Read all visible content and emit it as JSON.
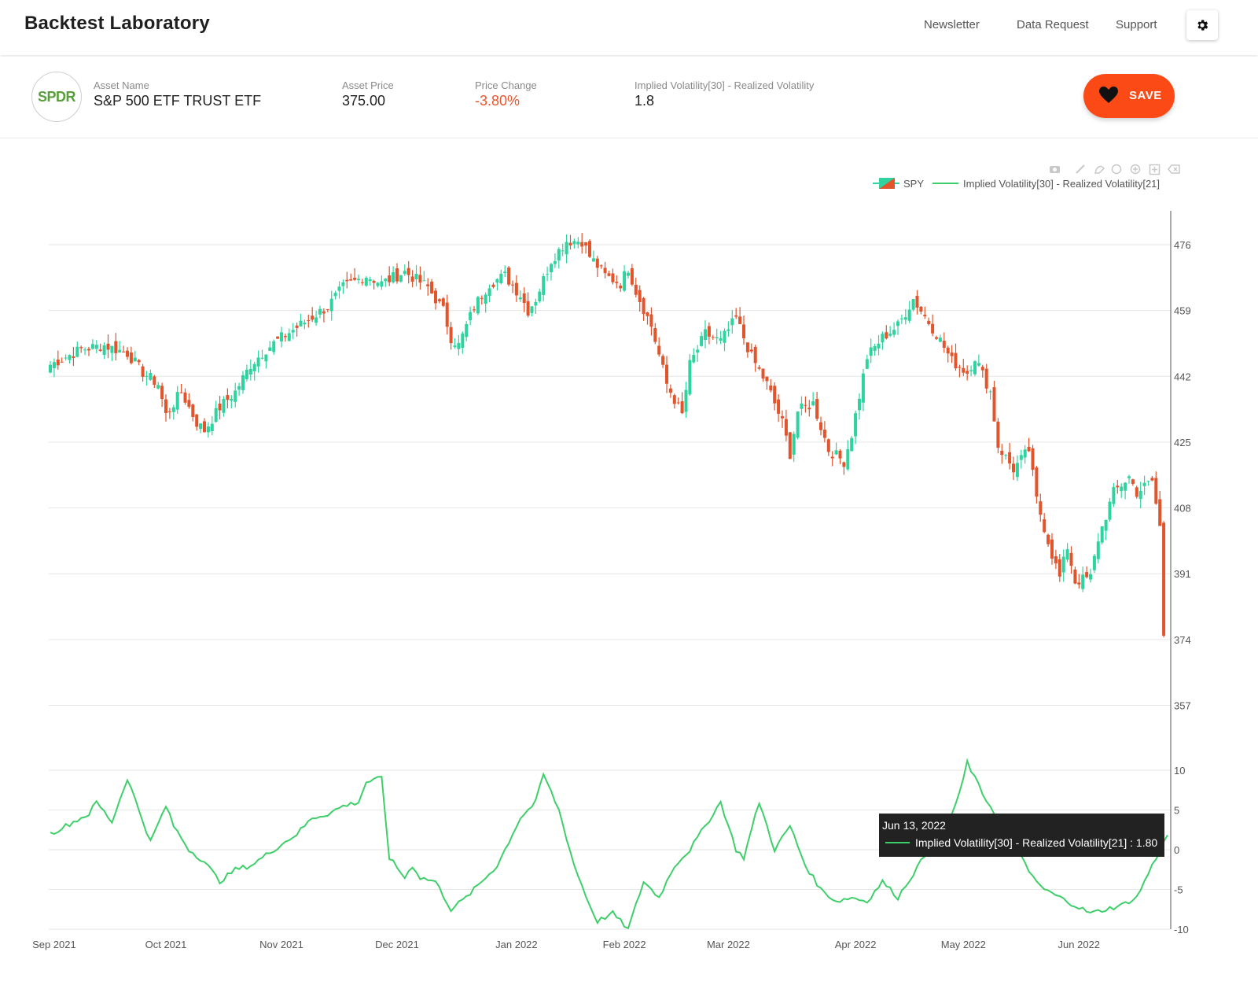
{
  "header": {
    "title": "Backtest Laboratory",
    "nav": [
      "Newsletter",
      "Data Request",
      "Support"
    ]
  },
  "asset": {
    "logo_text": "SPDR",
    "name_label": "Asset Name",
    "name": "S&P 500 ETF TRUST ETF",
    "price_label": "Asset Price",
    "price": "375.00",
    "change_label": "Price Change",
    "change": "-3.80%",
    "vol_label": "Implied Volatility[30] - Realized Volatility",
    "vol": "1.8",
    "save_label": "SAVE"
  },
  "colors": {
    "up": "#2fd39f",
    "down": "#e2542c",
    "line": "#3ecf6a",
    "save": "#fb4a16"
  },
  "chart_data": [
    {
      "type": "candlestick",
      "series_name": "SPY",
      "y_ticks": [
        476,
        459,
        442,
        425,
        408,
        391,
        374,
        357
      ],
      "x_ticks": [
        "Sep 2021",
        "Oct 2021",
        "Nov 2021",
        "Dec 2021",
        "Jan 2022",
        "Feb 2022",
        "Mar 2022",
        "Apr 2022",
        "May 2022",
        "Jun 2022"
      ],
      "close_path": [
        [
          0,
          445
        ],
        [
          8,
          449
        ],
        [
          14,
          450
        ],
        [
          20,
          448
        ],
        [
          24,
          443
        ],
        [
          28,
          440
        ],
        [
          30,
          432
        ],
        [
          34,
          438
        ],
        [
          38,
          430
        ],
        [
          40,
          428
        ],
        [
          44,
          434
        ],
        [
          48,
          438
        ],
        [
          52,
          445
        ],
        [
          56,
          449
        ],
        [
          60,
          452
        ],
        [
          66,
          456
        ],
        [
          72,
          460
        ],
        [
          76,
          465
        ],
        [
          82,
          468
        ],
        [
          86,
          466
        ],
        [
          92,
          469
        ],
        [
          98,
          465
        ],
        [
          102,
          459
        ],
        [
          104,
          452
        ],
        [
          106,
          450
        ],
        [
          110,
          460
        ],
        [
          114,
          466
        ],
        [
          118,
          468
        ],
        [
          122,
          463
        ],
        [
          124,
          459
        ],
        [
          126,
          462
        ],
        [
          130,
          472
        ],
        [
          134,
          477
        ],
        [
          138,
          477
        ],
        [
          140,
          473
        ],
        [
          144,
          468
        ],
        [
          148,
          466
        ],
        [
          150,
          470
        ],
        [
          152,
          464
        ],
        [
          156,
          455
        ],
        [
          160,
          440
        ],
        [
          164,
          432
        ],
        [
          166,
          445
        ],
        [
          170,
          453
        ],
        [
          174,
          451
        ],
        [
          178,
          457
        ],
        [
          182,
          447
        ],
        [
          186,
          440
        ],
        [
          190,
          430
        ],
        [
          192,
          422
        ],
        [
          194,
          433
        ],
        [
          198,
          435
        ],
        [
          202,
          423
        ],
        [
          206,
          420
        ],
        [
          208,
          427
        ],
        [
          212,
          447
        ],
        [
          216,
          452
        ],
        [
          220,
          455
        ],
        [
          224,
          462
        ],
        [
          226,
          459
        ],
        [
          230,
          453
        ],
        [
          234,
          446
        ],
        [
          238,
          443
        ],
        [
          240,
          447
        ],
        [
          244,
          438
        ],
        [
          246,
          424
        ],
        [
          250,
          418
        ],
        [
          254,
          423
        ],
        [
          256,
          410
        ],
        [
          260,
          396
        ],
        [
          262,
          390
        ],
        [
          264,
          398
        ],
        [
          266,
          389
        ],
        [
          270,
          390
        ],
        [
          272,
          400
        ],
        [
          276,
          412
        ],
        [
          280,
          416
        ],
        [
          282,
          412
        ],
        [
          286,
          415
        ],
        [
          288,
          403
        ]
      ],
      "last_close": 375.0
    },
    {
      "type": "line",
      "series_name": "Implied Volatility[30] - Realized Volatility[21]",
      "y_ticks": [
        10,
        5,
        0,
        -5,
        -10
      ],
      "path": [
        [
          0,
          2
        ],
        [
          4,
          3
        ],
        [
          6,
          3.5
        ],
        [
          10,
          4.5
        ],
        [
          12,
          6
        ],
        [
          16,
          3.5
        ],
        [
          20,
          9
        ],
        [
          26,
          1
        ],
        [
          30,
          5.5
        ],
        [
          32,
          3
        ],
        [
          36,
          0
        ],
        [
          40,
          -1.5
        ],
        [
          44,
          -4
        ],
        [
          48,
          -2.5
        ],
        [
          52,
          -2
        ],
        [
          58,
          0
        ],
        [
          64,
          2
        ],
        [
          68,
          4
        ],
        [
          72,
          4.5
        ],
        [
          76,
          5.5
        ],
        [
          80,
          6
        ],
        [
          82,
          8.5
        ],
        [
          86,
          9
        ],
        [
          88,
          -1
        ],
        [
          92,
          -3.5
        ],
        [
          94,
          -2
        ],
        [
          96,
          -3.5
        ],
        [
          100,
          -4
        ],
        [
          104,
          -7.5
        ],
        [
          108,
          -6
        ],
        [
          112,
          -4
        ],
        [
          116,
          -2
        ],
        [
          118,
          0
        ],
        [
          122,
          4
        ],
        [
          126,
          6
        ],
        [
          128,
          9.5
        ],
        [
          132,
          5
        ],
        [
          136,
          -2
        ],
        [
          140,
          -7
        ],
        [
          142,
          -9
        ],
        [
          146,
          -8
        ],
        [
          150,
          -10
        ],
        [
          154,
          -4
        ],
        [
          158,
          -6
        ],
        [
          162,
          -2
        ],
        [
          166,
          0
        ],
        [
          170,
          3
        ],
        [
          174,
          6
        ],
        [
          178,
          0
        ],
        [
          180,
          -1
        ],
        [
          184,
          6
        ],
        [
          188,
          0
        ],
        [
          192,
          3
        ],
        [
          196,
          -2
        ],
        [
          200,
          -5
        ],
        [
          204,
          -6.5
        ],
        [
          208,
          -6
        ],
        [
          212,
          -6.5
        ],
        [
          216,
          -4
        ],
        [
          220,
          -6
        ],
        [
          224,
          -3
        ],
        [
          228,
          0
        ],
        [
          232,
          2
        ],
        [
          236,
          7
        ],
        [
          238,
          11
        ],
        [
          242,
          7
        ],
        [
          246,
          4
        ],
        [
          250,
          2
        ],
        [
          254,
          -3
        ],
        [
          258,
          -5
        ],
        [
          262,
          -6
        ],
        [
          266,
          -7
        ],
        [
          270,
          -8
        ],
        [
          274,
          -7.5
        ],
        [
          278,
          -7
        ],
        [
          282,
          -6
        ],
        [
          286,
          -2
        ],
        [
          290,
          1.8
        ]
      ],
      "tooltip": {
        "date": "Jun 13, 2022",
        "label": "Implied Volatility[30] - Realized Volatility[21] : 1.80"
      }
    }
  ]
}
